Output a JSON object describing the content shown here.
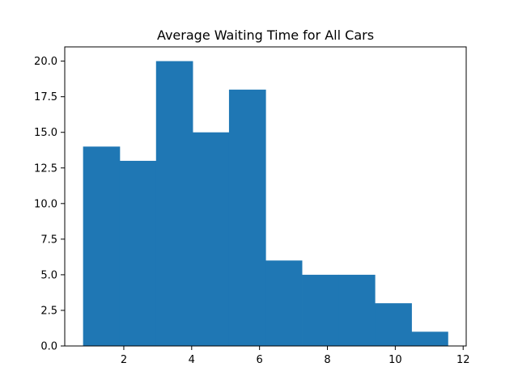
{
  "chart_data": {
    "type": "histogram",
    "title": "Average Waiting Time for All Cars",
    "xlabel": "",
    "ylabel": "",
    "bins": [
      {
        "x0": 0.8,
        "x1": 1.88,
        "count": 14
      },
      {
        "x0": 1.88,
        "x1": 2.95,
        "count": 13
      },
      {
        "x0": 2.95,
        "x1": 4.03,
        "count": 20
      },
      {
        "x0": 4.03,
        "x1": 5.1,
        "count": 15
      },
      {
        "x0": 5.1,
        "x1": 6.18,
        "count": 18
      },
      {
        "x0": 6.18,
        "x1": 7.25,
        "count": 6
      },
      {
        "x0": 7.25,
        "x1": 8.33,
        "count": 5
      },
      {
        "x0": 8.33,
        "x1": 9.4,
        "count": 5
      },
      {
        "x0": 9.4,
        "x1": 10.48,
        "count": 3
      },
      {
        "x0": 10.48,
        "x1": 11.55,
        "count": 1
      }
    ],
    "xlim": [
      0.26,
      12.09
    ],
    "ylim": [
      0,
      21
    ],
    "xticks": [
      2,
      4,
      6,
      8,
      10,
      12
    ],
    "xtick_labels": [
      "2",
      "4",
      "6",
      "8",
      "10",
      "12"
    ],
    "yticks": [
      0,
      2.5,
      5,
      7.5,
      10,
      12.5,
      15,
      17.5,
      20
    ],
    "ytick_labels": [
      "0.0",
      "2.5",
      "5.0",
      "7.5",
      "10.0",
      "12.5",
      "15.0",
      "17.5",
      "20.0"
    ],
    "grid": false,
    "bar_color": "#1f77b4"
  }
}
